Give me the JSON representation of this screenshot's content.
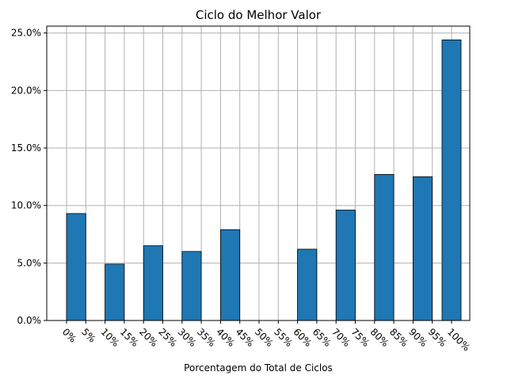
{
  "chart_data": {
    "type": "bar",
    "title": "Ciclo do Melhor Valor",
    "xlabel": "Porcentagem do Total de Ciclos",
    "ylabel": "",
    "x_tick_labels": [
      "0%",
      "5%",
      "10%",
      "15%",
      "20%",
      "25%",
      "30%",
      "35%",
      "40%",
      "45%",
      "50%",
      "55%",
      "60%",
      "65%",
      "70%",
      "75%",
      "80%",
      "85%",
      "90%",
      "95%",
      "100%"
    ],
    "y_tick_labels": [
      "0.0%",
      "5.0%",
      "10.0%",
      "15.0%",
      "20.0%",
      "25.0%"
    ],
    "y_ticks": [
      0,
      5,
      10,
      15,
      20,
      25
    ],
    "ylim": [
      0,
      25.6
    ],
    "grid": true,
    "bar_color": "#1f77b4",
    "bars": [
      {
        "from": "0%",
        "to": "5%",
        "value": 9.3
      },
      {
        "from": "10%",
        "to": "15%",
        "value": 4.9
      },
      {
        "from": "20%",
        "to": "25%",
        "value": 6.5
      },
      {
        "from": "30%",
        "to": "35%",
        "value": 6.0
      },
      {
        "from": "40%",
        "to": "45%",
        "value": 7.9
      },
      {
        "from": "50%",
        "to": "55%",
        "value": 0.0
      },
      {
        "from": "60%",
        "to": "65%",
        "value": 6.2
      },
      {
        "from": "70%",
        "to": "75%",
        "value": 9.6
      },
      {
        "from": "80%",
        "to": "85%",
        "value": 12.7
      },
      {
        "from": "90%",
        "to": "95%",
        "value": 12.5
      },
      {
        "from": "100%",
        "to": "100%",
        "value": 24.4
      }
    ]
  }
}
